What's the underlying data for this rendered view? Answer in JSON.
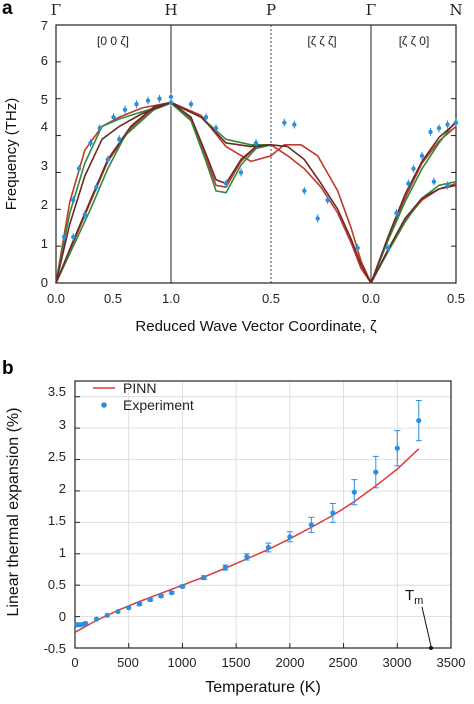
{
  "figure": {
    "panels": [
      {
        "letter": "a"
      },
      {
        "letter": "b"
      }
    ]
  },
  "chart_data": [
    {
      "type": "line",
      "panel": "a",
      "title": "",
      "ylabel": "Frequency (THz)",
      "xlabel": "Reduced Wave Vector Coordinate, ζ",
      "ylim": [
        0,
        7
      ],
      "yticks": [
        "0",
        "1",
        "2",
        "3",
        "4",
        "5",
        "6",
        "7"
      ],
      "segments": [
        {
          "label": "[0 0 ζ]",
          "from": "Γ",
          "to": "H",
          "ticks": [
            "0.0",
            "0.5",
            "1.0"
          ]
        },
        {
          "label": "[ζ ζ ζ]",
          "from": "H",
          "to": "P",
          "ticks": [
            "1.0",
            "0.5"
          ]
        },
        {
          "label": "[ζ ζ 0]",
          "from": "Γ",
          "to": "N",
          "ticks": [
            "0.0",
            "0.5"
          ]
        }
      ],
      "symmetry_points": [
        "Γ",
        "H",
        "P",
        "Γ",
        "N"
      ],
      "grid": false,
      "series": [
        {
          "color": "#c0392b",
          "values": [
            [
              [
                0,
                0
              ],
              [
                0.12,
                2.2
              ],
              [
                0.25,
                3.6
              ],
              [
                0.4,
                4.25
              ],
              [
                0.55,
                4.5
              ],
              [
                0.75,
                4.75
              ],
              [
                1.0,
                4.9
              ],
              [
                1.3,
                4.55
              ],
              [
                1.55,
                3.7
              ],
              [
                1.8,
                3.3
              ],
              [
                2.0,
                3.45
              ],
              [
                2.2,
                3.75
              ],
              [
                2.45,
                3.75
              ],
              [
                2.7,
                3.45
              ],
              [
                3.0,
                2.5
              ],
              [
                3.2,
                1.5
              ],
              [
                3.35,
                0.6
              ],
              [
                3.5,
                0
              ]
            ],
            [
              [
                0,
                0
              ],
              [
                0.15,
                1.1
              ],
              [
                0.3,
                2.2
              ],
              [
                0.45,
                3.3
              ],
              [
                0.65,
                4.2
              ],
              [
                0.85,
                4.75
              ],
              [
                1.0,
                4.9
              ],
              [
                1.2,
                4.45
              ],
              [
                1.35,
                3.4
              ],
              [
                1.45,
                2.65
              ],
              [
                1.55,
                2.6
              ],
              [
                1.7,
                3.3
              ],
              [
                1.85,
                3.7
              ],
              [
                2.0,
                3.75
              ],
              [
                2.25,
                3.45
              ],
              [
                2.5,
                3.1
              ],
              [
                2.75,
                2.6
              ],
              [
                3.0,
                1.9
              ],
              [
                3.2,
                1.1
              ],
              [
                3.35,
                0.4
              ],
              [
                3.5,
                0
              ]
            ],
            [
              [
                3.5,
                0
              ],
              [
                3.6,
                1.2
              ],
              [
                3.7,
                2.3
              ],
              [
                3.8,
                3.25
              ],
              [
                3.9,
                3.85
              ],
              [
                4.0,
                4.25
              ]
            ],
            [
              [
                3.5,
                0
              ],
              [
                3.6,
                0.9
              ],
              [
                3.7,
                1.7
              ],
              [
                3.8,
                2.25
              ],
              [
                3.9,
                2.55
              ],
              [
                4.0,
                2.7
              ]
            ]
          ]
        },
        {
          "color": "#2e8b3a",
          "values": [
            [
              [
                0,
                0
              ],
              [
                0.12,
                1.9
              ],
              [
                0.25,
                3.25
              ],
              [
                0.4,
                4.25
              ],
              [
                0.55,
                4.45
              ],
              [
                0.7,
                4.6
              ],
              [
                1.0,
                4.88
              ],
              [
                1.3,
                4.5
              ],
              [
                1.55,
                3.9
              ],
              [
                1.8,
                3.75
              ],
              [
                2.0,
                3.75
              ]
            ],
            [
              [
                0,
                0
              ],
              [
                0.15,
                1.0
              ],
              [
                0.3,
                2.0
              ],
              [
                0.45,
                3.1
              ],
              [
                0.6,
                4.0
              ],
              [
                0.85,
                4.7
              ],
              [
                1.0,
                4.88
              ],
              [
                1.2,
                4.4
              ],
              [
                1.35,
                3.3
              ],
              [
                1.45,
                2.5
              ],
              [
                1.55,
                2.45
              ],
              [
                1.7,
                3.2
              ],
              [
                1.85,
                3.65
              ],
              [
                2.0,
                3.75
              ]
            ],
            [
              [
                3.5,
                0
              ],
              [
                3.6,
                1.15
              ],
              [
                3.7,
                2.2
              ],
              [
                3.8,
                3.1
              ],
              [
                3.9,
                3.8
              ],
              [
                4.0,
                4.4
              ]
            ],
            [
              [
                3.5,
                0
              ],
              [
                3.6,
                0.85
              ],
              [
                3.7,
                1.65
              ],
              [
                3.8,
                2.3
              ],
              [
                3.9,
                2.65
              ],
              [
                4.0,
                2.75
              ]
            ]
          ]
        },
        {
          "color": "#6b2a2a",
          "values": [
            [
              [
                0,
                0
              ],
              [
                0.12,
                1.6
              ],
              [
                0.25,
                2.9
              ],
              [
                0.4,
                3.9
              ],
              [
                0.55,
                4.25
              ],
              [
                0.75,
                4.6
              ],
              [
                1.0,
                4.9
              ],
              [
                1.3,
                4.5
              ],
              [
                1.55,
                3.8
              ],
              [
                1.8,
                3.7
              ],
              [
                2.0,
                3.75
              ],
              [
                2.25,
                3.7
              ],
              [
                2.5,
                3.35
              ],
              [
                2.75,
                2.7
              ],
              [
                3.0,
                2.0
              ],
              [
                3.2,
                1.2
              ],
              [
                3.35,
                0.5
              ],
              [
                3.5,
                0
              ]
            ],
            [
              [
                0,
                0
              ],
              [
                0.15,
                1.15
              ],
              [
                0.3,
                2.25
              ],
              [
                0.45,
                3.35
              ],
              [
                0.65,
                4.25
              ],
              [
                0.85,
                4.78
              ],
              [
                1.0,
                4.9
              ],
              [
                1.2,
                4.5
              ],
              [
                1.35,
                3.5
              ],
              [
                1.45,
                2.8
              ],
              [
                1.55,
                2.7
              ],
              [
                1.7,
                3.35
              ],
              [
                1.85,
                3.7
              ],
              [
                2.0,
                3.75
              ]
            ],
            [
              [
                3.5,
                0
              ],
              [
                3.6,
                1.25
              ],
              [
                3.7,
                2.4
              ],
              [
                3.8,
                3.3
              ],
              [
                3.9,
                3.95
              ],
              [
                4.0,
                4.35
              ]
            ],
            [
              [
                3.5,
                0
              ],
              [
                3.6,
                0.9
              ],
              [
                3.7,
                1.75
              ],
              [
                3.8,
                2.3
              ],
              [
                3.9,
                2.55
              ],
              [
                4.0,
                2.65
              ]
            ]
          ]
        }
      ],
      "points": [
        [
          0.07,
          1.25
        ],
        [
          0.15,
          2.25
        ],
        [
          0.2,
          3.1
        ],
        [
          0.3,
          3.8
        ],
        [
          0.38,
          4.2
        ],
        [
          0.5,
          4.5
        ],
        [
          0.6,
          4.7
        ],
        [
          0.7,
          4.85
        ],
        [
          0.8,
          4.95
        ],
        [
          0.9,
          5.0
        ],
        [
          1.0,
          5.05
        ],
        [
          1.0,
          4.9
        ],
        [
          1.2,
          4.85
        ],
        [
          1.35,
          4.5
        ],
        [
          1.45,
          4.2
        ],
        [
          1.55,
          2.7
        ],
        [
          1.7,
          3.0
        ],
        [
          1.85,
          3.8
        ],
        [
          2.2,
          4.35
        ],
        [
          2.35,
          4.3
        ],
        [
          2.5,
          2.5
        ],
        [
          2.7,
          1.75
        ],
        [
          2.85,
          2.25
        ],
        [
          3.3,
          0.95
        ],
        [
          0.15,
          1.25
        ],
        [
          0.25,
          1.85
        ],
        [
          0.35,
          2.6
        ],
        [
          0.45,
          3.35
        ],
        [
          0.55,
          3.9
        ],
        [
          3.6,
          0.95
        ],
        [
          3.65,
          1.9
        ],
        [
          3.72,
          2.7
        ],
        [
          3.75,
          3.1
        ],
        [
          3.8,
          3.45
        ],
        [
          3.85,
          4.1
        ],
        [
          3.9,
          4.2
        ],
        [
          3.95,
          4.3
        ],
        [
          4.0,
          4.35
        ],
        [
          3.87,
          2.75
        ],
        [
          3.95,
          2.65
        ]
      ],
      "point_color": "#2b8fe0"
    },
    {
      "type": "line",
      "panel": "b",
      "title": "",
      "xlabel": "Temperature (K)",
      "ylabel": "Linear thermal expansion (%)",
      "xlim": [
        0,
        3500
      ],
      "ylim": [
        -0.5,
        3.75
      ],
      "xticks": [
        "0",
        "500",
        "1000",
        "1500",
        "2000",
        "2500",
        "3000",
        "3500"
      ],
      "yticks": [
        "-0.5",
        "0",
        "0.5",
        "1",
        "1.5",
        "2",
        "2.5",
        "3",
        "3.5"
      ],
      "grid": true,
      "legend_position": "top-left",
      "series": [
        {
          "name": "PINN",
          "color": "#e03a3a",
          "type": "line",
          "x": [
            0,
            200,
            400,
            600,
            800,
            1000,
            1200,
            1400,
            1600,
            1800,
            2000,
            2200,
            2400,
            2600,
            2800,
            3000,
            3200
          ],
          "y": [
            -0.25,
            -0.06,
            0.1,
            0.24,
            0.37,
            0.5,
            0.63,
            0.77,
            0.92,
            1.07,
            1.24,
            1.42,
            1.61,
            1.83,
            2.08,
            2.35,
            2.67
          ]
        },
        {
          "name": "Experiment",
          "color": "#2b8fe0",
          "type": "scatter",
          "x": [
            20,
            50,
            80,
            100,
            200,
            300,
            400,
            500,
            600,
            700,
            800,
            900,
            1000,
            1200,
            1400,
            1600,
            1800,
            2000,
            2200,
            2400,
            2600,
            2800,
            3000,
            3200
          ],
          "y": [
            -0.13,
            -0.13,
            -0.12,
            -0.11,
            -0.04,
            0.02,
            0.08,
            0.14,
            0.2,
            0.27,
            0.33,
            0.38,
            0.48,
            0.62,
            0.78,
            0.95,
            1.1,
            1.27,
            1.46,
            1.65,
            1.98,
            2.3,
            2.68,
            3.12
          ],
          "err": [
            0.01,
            0.01,
            0.01,
            0.01,
            0.01,
            0.01,
            0.01,
            0.01,
            0.02,
            0.02,
            0.02,
            0.02,
            0.02,
            0.03,
            0.04,
            0.05,
            0.07,
            0.08,
            0.12,
            0.15,
            0.2,
            0.25,
            0.28,
            0.32
          ]
        }
      ],
      "annotations": [
        {
          "text": "T",
          "subscript": "m",
          "x": 3260,
          "y": -0.5
        }
      ]
    }
  ]
}
